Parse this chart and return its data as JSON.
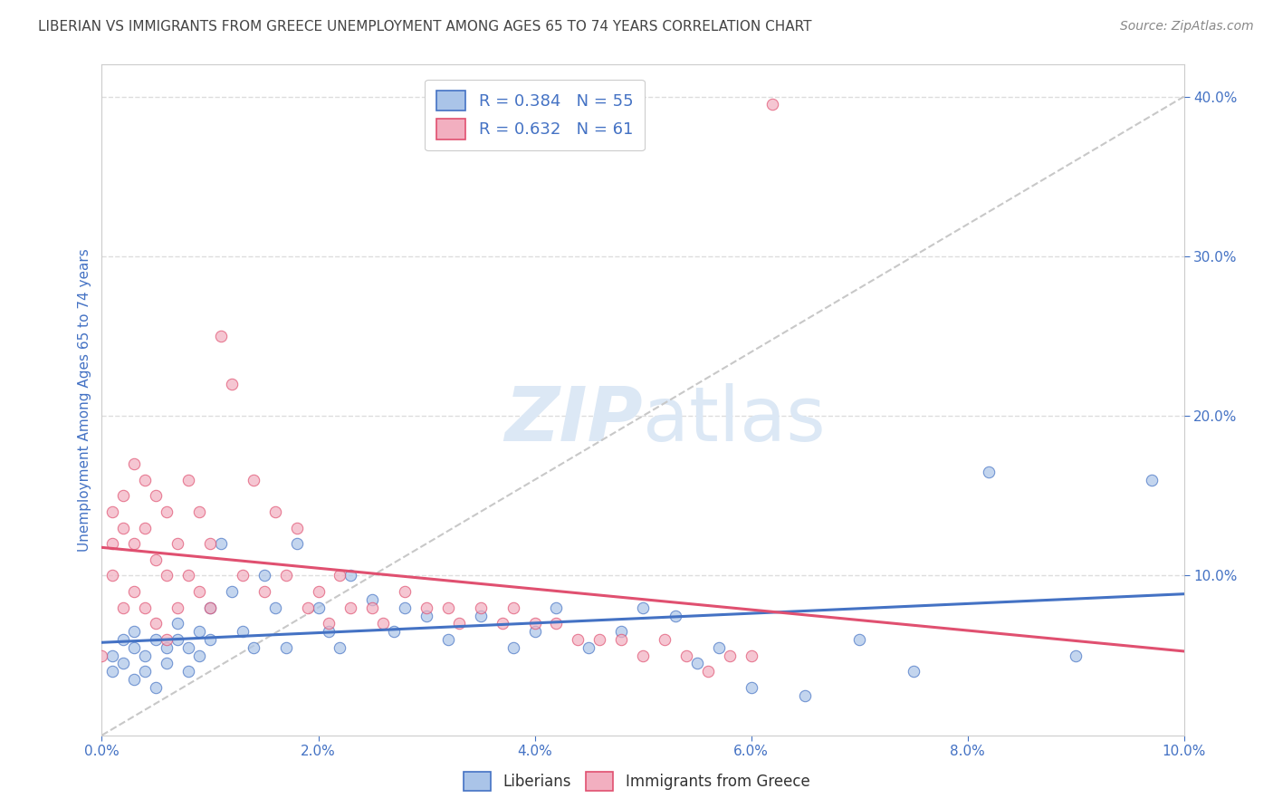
{
  "title": "LIBERIAN VS IMMIGRANTS FROM GREECE UNEMPLOYMENT AMONG AGES 65 TO 74 YEARS CORRELATION CHART",
  "source": "Source: ZipAtlas.com",
  "ylabel": "Unemployment Among Ages 65 to 74 years",
  "xlim": [
    0.0,
    0.1
  ],
  "ylim": [
    0.0,
    0.42
  ],
  "blue_color": "#aac4e8",
  "pink_color": "#f2afc0",
  "blue_line_color": "#4472c4",
  "pink_line_color": "#e05070",
  "diagonal_color": "#c8c8c8",
  "R_blue": 0.384,
  "N_blue": 55,
  "R_pink": 0.632,
  "N_pink": 61,
  "blue_scatter_x": [
    0.001,
    0.001,
    0.002,
    0.002,
    0.003,
    0.003,
    0.003,
    0.004,
    0.004,
    0.005,
    0.005,
    0.006,
    0.006,
    0.007,
    0.007,
    0.008,
    0.008,
    0.009,
    0.009,
    0.01,
    0.01,
    0.011,
    0.012,
    0.013,
    0.014,
    0.015,
    0.016,
    0.017,
    0.018,
    0.02,
    0.021,
    0.022,
    0.023,
    0.025,
    0.027,
    0.028,
    0.03,
    0.032,
    0.035,
    0.038,
    0.04,
    0.042,
    0.045,
    0.048,
    0.05,
    0.053,
    0.055,
    0.057,
    0.06,
    0.065,
    0.07,
    0.075,
    0.082,
    0.09,
    0.097
  ],
  "blue_scatter_y": [
    0.05,
    0.04,
    0.06,
    0.045,
    0.055,
    0.035,
    0.065,
    0.05,
    0.04,
    0.06,
    0.03,
    0.055,
    0.045,
    0.06,
    0.07,
    0.055,
    0.04,
    0.065,
    0.05,
    0.08,
    0.06,
    0.12,
    0.09,
    0.065,
    0.055,
    0.1,
    0.08,
    0.055,
    0.12,
    0.08,
    0.065,
    0.055,
    0.1,
    0.085,
    0.065,
    0.08,
    0.075,
    0.06,
    0.075,
    0.055,
    0.065,
    0.08,
    0.055,
    0.065,
    0.08,
    0.075,
    0.045,
    0.055,
    0.03,
    0.025,
    0.06,
    0.04,
    0.165,
    0.05,
    0.16
  ],
  "pink_scatter_x": [
    0.0,
    0.001,
    0.001,
    0.001,
    0.002,
    0.002,
    0.002,
    0.003,
    0.003,
    0.003,
    0.004,
    0.004,
    0.004,
    0.005,
    0.005,
    0.005,
    0.006,
    0.006,
    0.006,
    0.007,
    0.007,
    0.008,
    0.008,
    0.009,
    0.009,
    0.01,
    0.01,
    0.011,
    0.012,
    0.013,
    0.014,
    0.015,
    0.016,
    0.017,
    0.018,
    0.019,
    0.02,
    0.021,
    0.022,
    0.023,
    0.025,
    0.026,
    0.028,
    0.03,
    0.032,
    0.033,
    0.035,
    0.037,
    0.038,
    0.04,
    0.042,
    0.044,
    0.046,
    0.048,
    0.05,
    0.052,
    0.054,
    0.056,
    0.058,
    0.06,
    0.062
  ],
  "pink_scatter_y": [
    0.05,
    0.14,
    0.12,
    0.1,
    0.15,
    0.13,
    0.08,
    0.17,
    0.12,
    0.09,
    0.16,
    0.13,
    0.08,
    0.15,
    0.11,
    0.07,
    0.14,
    0.1,
    0.06,
    0.12,
    0.08,
    0.16,
    0.1,
    0.14,
    0.09,
    0.12,
    0.08,
    0.25,
    0.22,
    0.1,
    0.16,
    0.09,
    0.14,
    0.1,
    0.13,
    0.08,
    0.09,
    0.07,
    0.1,
    0.08,
    0.08,
    0.07,
    0.09,
    0.08,
    0.08,
    0.07,
    0.08,
    0.07,
    0.08,
    0.07,
    0.07,
    0.06,
    0.06,
    0.06,
    0.05,
    0.06,
    0.05,
    0.04,
    0.05,
    0.05,
    0.395
  ],
  "xtick_vals": [
    0.0,
    0.02,
    0.04,
    0.06,
    0.08,
    0.1
  ],
  "xtick_labels": [
    "0.0%",
    "2.0%",
    "4.0%",
    "6.0%",
    "8.0%",
    "10.0%"
  ],
  "ytick_vals": [
    0.1,
    0.2,
    0.3,
    0.4
  ],
  "ytick_labels": [
    "10.0%",
    "20.0%",
    "30.0%",
    "40.0%"
  ],
  "background_color": "#ffffff",
  "grid_color": "#dddddd",
  "text_color": "#4472c4",
  "title_color": "#444444",
  "source_color": "#888888",
  "watermark_color": "#dce8f5"
}
